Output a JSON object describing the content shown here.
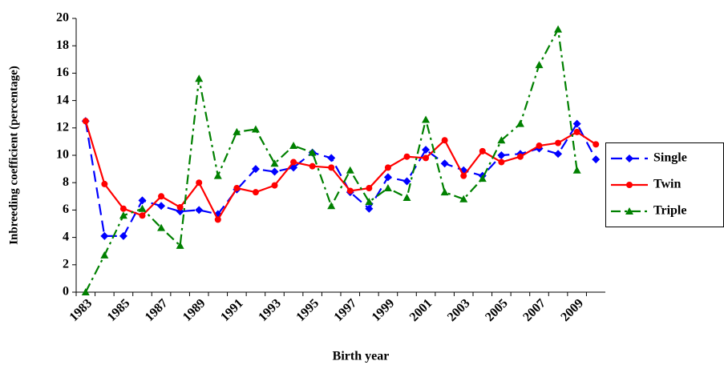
{
  "chart_data": {
    "type": "line",
    "x_label": "Birth year",
    "y_label": "Inbreeding coefficient (percentage)",
    "categories": [
      "1983",
      null,
      "1985",
      null,
      "1987",
      null,
      "1989",
      null,
      "1991",
      null,
      "1993",
      null,
      "1995",
      null,
      "1997",
      null,
      "1999",
      null,
      "2001",
      null,
      "2003",
      null,
      "2005",
      null,
      "2007",
      null,
      "2009",
      null
    ],
    "series": [
      {
        "name": "Single",
        "color": "#0000ff",
        "marker": "diamond",
        "dash": "long-dash",
        "values": [
          12.5,
          4.1,
          4.1,
          6.7,
          6.3,
          5.9,
          6.0,
          5.7,
          7.5,
          9.0,
          8.8,
          9.1,
          10.2,
          9.8,
          7.3,
          6.1,
          8.4,
          8.1,
          10.4,
          9.4,
          8.9,
          8.5,
          10.0,
          10.1,
          10.5,
          10.1,
          12.3,
          9.7
        ]
      },
      {
        "name": "Twin",
        "color": "#ff0000",
        "marker": "circle",
        "dash": "solid",
        "values": [
          12.5,
          7.9,
          6.1,
          5.6,
          7.0,
          6.2,
          8.0,
          5.3,
          7.6,
          7.3,
          7.8,
          9.5,
          9.2,
          9.1,
          7.4,
          7.6,
          9.1,
          9.9,
          9.8,
          11.1,
          8.5,
          10.3,
          9.5,
          9.9,
          10.7,
          10.9,
          11.7,
          10.8
        ]
      },
      {
        "name": "Triple",
        "color": "#008000",
        "marker": "triangle",
        "dash": "dash-dot",
        "values": [
          0,
          2.7,
          5.6,
          6.1,
          4.7,
          3.4,
          15.6,
          8.5,
          11.7,
          11.9,
          9.4,
          10.7,
          10.2,
          6.3,
          8.9,
          6.6,
          7.6,
          6.9,
          12.6,
          7.3,
          6.8,
          8.3,
          11.1,
          12.3,
          16.6,
          19.2,
          8.9,
          null
        ]
      }
    ],
    "ylim": [
      0,
      20
    ],
    "yticks": [
      0,
      2,
      4,
      6,
      8,
      10,
      12,
      14,
      16,
      18,
      20
    ],
    "grid": false,
    "legend": "right"
  }
}
